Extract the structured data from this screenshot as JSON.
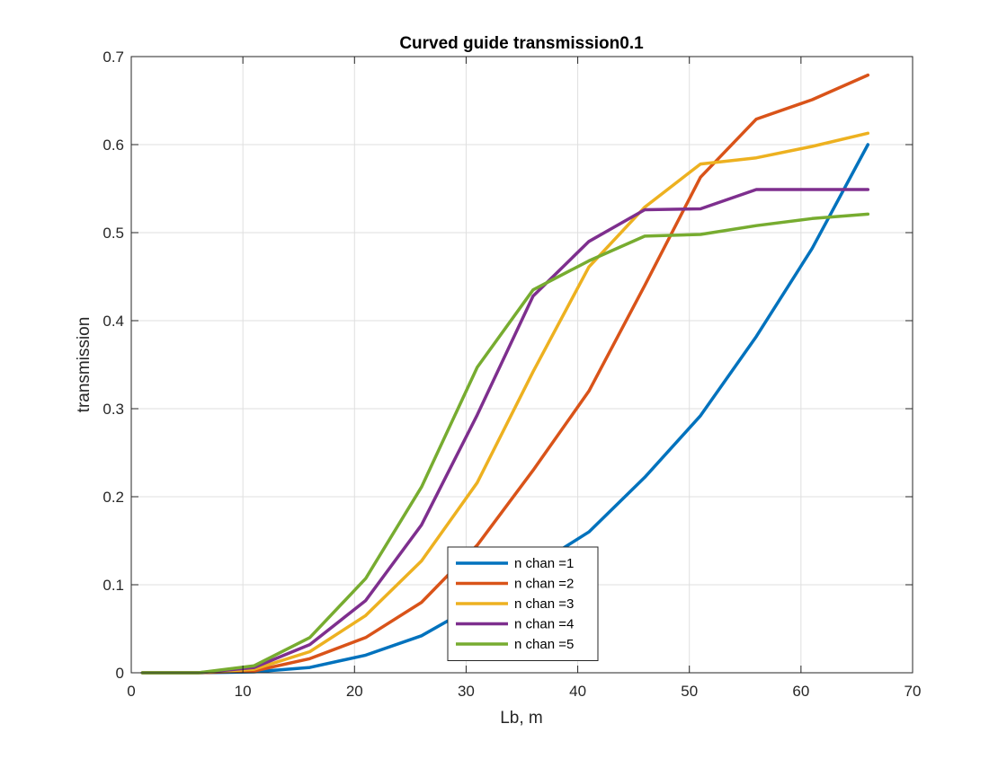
{
  "chart_data": {
    "type": "line",
    "title": "Curved guide transmission0.1",
    "xlabel": "Lb, m",
    "ylabel": "transmission",
    "xlim": [
      0,
      70
    ],
    "ylim": [
      0,
      0.7
    ],
    "xticks": [
      0,
      10,
      20,
      30,
      40,
      50,
      60,
      70
    ],
    "yticks": [
      0,
      0.1,
      0.2,
      0.3,
      0.4,
      0.5,
      0.6,
      0.7
    ],
    "xtick_labels": [
      "0",
      "10",
      "20",
      "30",
      "40",
      "50",
      "60",
      "70"
    ],
    "ytick_labels": [
      "0",
      "0.1",
      "0.2",
      "0.3",
      "0.4",
      "0.5",
      "0.6",
      "0.7"
    ],
    "grid": true,
    "legend_position": "bottom-center",
    "x": [
      1,
      6,
      11,
      16,
      21,
      26,
      31,
      36,
      41,
      46,
      51,
      56,
      61,
      66
    ],
    "series": [
      {
        "name": "n chan =1",
        "color": "#0072BD",
        "values": [
          0,
          0,
          0.001,
          0.006,
          0.02,
          0.042,
          0.078,
          0.12,
          0.16,
          0.222,
          0.292,
          0.382,
          0.482,
          0.6
        ]
      },
      {
        "name": "n chan =2",
        "color": "#D95319",
        "values": [
          0,
          0,
          0.002,
          0.016,
          0.04,
          0.08,
          0.145,
          0.23,
          0.32,
          0.44,
          0.563,
          0.629,
          0.651,
          0.679
        ]
      },
      {
        "name": "n chan =3",
        "color": "#EDB120",
        "values": [
          0,
          0,
          0.004,
          0.024,
          0.065,
          0.127,
          0.216,
          0.342,
          0.461,
          0.529,
          0.578,
          0.585,
          0.598,
          0.613
        ]
      },
      {
        "name": "n chan =4",
        "color": "#7E2F8E",
        "values": [
          0,
          0,
          0.006,
          0.032,
          0.082,
          0.168,
          0.293,
          0.428,
          0.49,
          0.526,
          0.527,
          0.549,
          0.549,
          0.549
        ]
      },
      {
        "name": "n chan =5",
        "color": "#77AC30",
        "values": [
          0,
          0,
          0.008,
          0.04,
          0.107,
          0.211,
          0.347,
          0.435,
          0.468,
          0.496,
          0.498,
          0.508,
          0.516,
          0.521
        ]
      }
    ]
  }
}
